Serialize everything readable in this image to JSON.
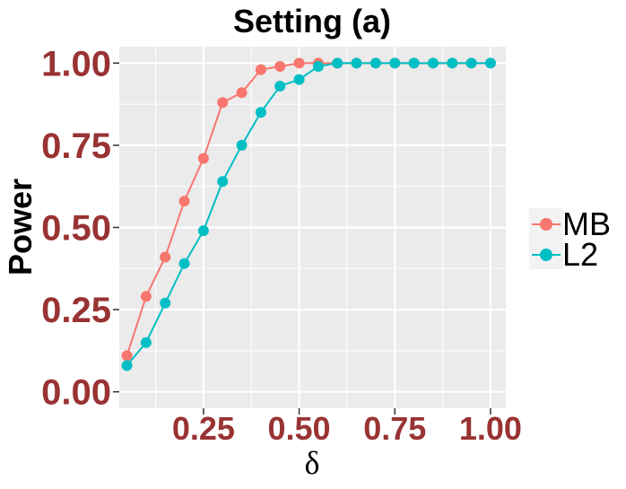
{
  "chart_data": {
    "type": "line",
    "title": "Setting (a)",
    "xlabel": "δ",
    "ylabel": "Power",
    "xlim": [
      0.03,
      1.04
    ],
    "ylim": [
      -0.05,
      1.05
    ],
    "xticks": [
      "0.25",
      "0.50",
      "0.75",
      "1.00"
    ],
    "xtick_values": [
      0.25,
      0.5,
      0.75,
      1.0
    ],
    "yticks": [
      "0.00",
      "0.25",
      "0.50",
      "0.75",
      "1.00"
    ],
    "ytick_values": [
      0,
      0.25,
      0.5,
      0.75,
      1.0
    ],
    "grid": true,
    "legend_position": "right",
    "x": [
      0.05,
      0.1,
      0.15,
      0.2,
      0.25,
      0.3,
      0.35,
      0.4,
      0.45,
      0.5,
      0.55,
      0.6,
      0.65,
      0.7,
      0.75,
      0.8,
      0.85,
      0.9,
      0.95,
      1.0
    ],
    "series": [
      {
        "name": "MB",
        "color": "#F8766D",
        "values": [
          0.11,
          0.29,
          0.41,
          0.58,
          0.71,
          0.88,
          0.91,
          0.98,
          0.99,
          1.0,
          1.0,
          1.0,
          1.0,
          1.0,
          1.0,
          1.0,
          1.0,
          1.0,
          1.0,
          1.0
        ]
      },
      {
        "name": "L2",
        "color": "#00BFC4",
        "values": [
          0.08,
          0.15,
          0.27,
          0.39,
          0.49,
          0.64,
          0.75,
          0.85,
          0.93,
          0.95,
          0.99,
          1.0,
          1.0,
          1.0,
          1.0,
          1.0,
          1.0,
          1.0,
          1.0,
          1.0
        ]
      }
    ]
  }
}
